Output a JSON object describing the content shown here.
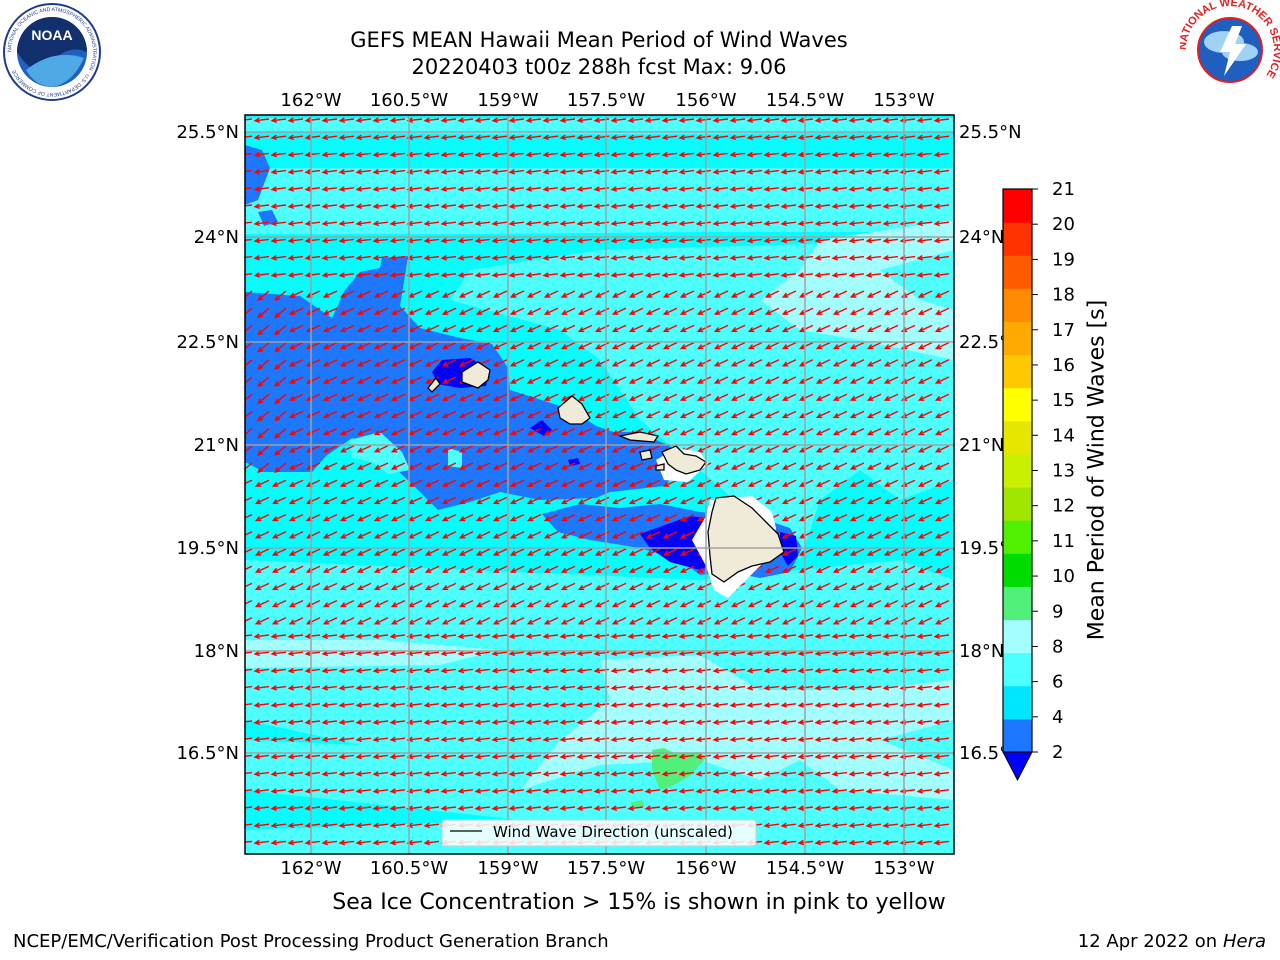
{
  "title": {
    "line1": "GEFS MEAN Hawaii Mean Period of Wind Waves",
    "line2": "20220403 t00z 288h fcst   Max: 9.06"
  },
  "map": {
    "lon_labels": [
      "162°W",
      "160.5°W",
      "159°W",
      "157.5°W",
      "156°W",
      "154.5°W",
      "153°W"
    ],
    "lat_labels": [
      "25.5°N",
      "24°N",
      "22.5°N",
      "21°N",
      "19.5°N",
      "18°N",
      "16.5°N"
    ],
    "legend_label": "Wind Wave Direction (unscaled)",
    "colors": {
      "ocean_base": "#00ffff",
      "lighter_band": "#4dffff",
      "pale_band": "#a3ffff",
      "deep_blue": "#1e78ff",
      "darker_blue": "#0000ff",
      "green_patch": "#50f07a",
      "land": "#f0ead8",
      "arrows": "#ff0000",
      "grid": "#a0a0a0"
    }
  },
  "colorbar": {
    "label": "Mean Period of Wind Waves [s]",
    "ticks": [
      "2",
      "4",
      "6",
      "8",
      "9",
      "10",
      "11",
      "12",
      "13",
      "14",
      "15",
      "16",
      "17",
      "18",
      "19",
      "20",
      "21"
    ],
    "colors": [
      "#1e78ff",
      "#00e6ff",
      "#4dffff",
      "#a3ffff",
      "#50f07a",
      "#00dc00",
      "#50f000",
      "#a0e600",
      "#c8f000",
      "#e6e600",
      "#ffff00",
      "#ffc800",
      "#ffaa00",
      "#ff8c00",
      "#ff5a00",
      "#ff3200",
      "#ff0000"
    ],
    "extend_color": "#0000ff"
  },
  "sub_caption": "Sea Ice Concentration > 15% is shown in pink to yellow",
  "footer": {
    "left": "NCEP/EMC/Verification Post Processing Product Generation Branch",
    "right_date": "12 Apr 2022 on ",
    "right_machine": "Hera"
  },
  "logos": {
    "noaa": "NOAA",
    "noaa_ring": "NATIONAL OCEANIC AND ATMOSPHERIC ADMINISTRATION · U.S. DEPARTMENT OF COMMERCE",
    "nws_ring": "NATIONAL WEATHER SERVICE"
  }
}
